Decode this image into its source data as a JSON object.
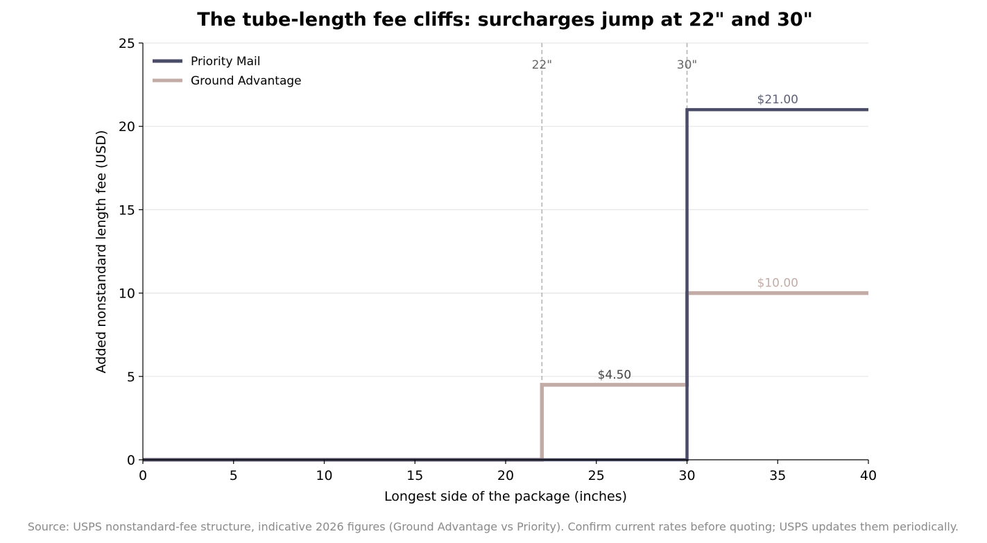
{
  "chart_data": {
    "type": "line",
    "title": "The tube-length fee cliffs: surcharges jump at 22\" and 30\"",
    "xlabel": "Longest side of the package (inches)",
    "ylabel": "Added nonstandard length fee (USD)",
    "xlim": [
      0,
      40
    ],
    "ylim": [
      0,
      25
    ],
    "x_ticks": [
      0,
      5,
      10,
      15,
      20,
      25,
      30,
      35,
      40
    ],
    "y_ticks": [
      0,
      5,
      10,
      15,
      20,
      25
    ],
    "x_tick_labels": [
      "0",
      "5",
      "10",
      "15",
      "20",
      "25",
      "30",
      "35",
      "40"
    ],
    "y_tick_labels": [
      "0",
      "5",
      "10",
      "15",
      "20",
      "25"
    ],
    "grid": "horizontal",
    "legend_position": "top-left",
    "series": [
      {
        "name": "Priority Mail",
        "color": "#4a4c68",
        "step_points": [
          [
            0,
            0
          ],
          [
            22,
            0
          ],
          [
            30,
            0
          ],
          [
            30,
            21
          ],
          [
            40,
            21
          ]
        ]
      },
      {
        "name": "Ground Advantage",
        "color": "#c4aca6",
        "step_points": [
          [
            0,
            0
          ],
          [
            22,
            0
          ],
          [
            22,
            4.5
          ],
          [
            30,
            4.5
          ],
          [
            30,
            10
          ],
          [
            40,
            10
          ]
        ]
      }
    ],
    "thresholds": [
      {
        "x": 22,
        "label": "22\""
      },
      {
        "x": 30,
        "label": "30\""
      }
    ],
    "annotations": [
      {
        "text": "$21.00",
        "x": 35,
        "y": 21,
        "color": "#5e6078"
      },
      {
        "text": "$10.00",
        "x": 35,
        "y": 10,
        "color": "#c4aca6"
      },
      {
        "text": "$4.50",
        "x": 26,
        "y": 4.5,
        "color": "#444444"
      }
    ],
    "source_note": "Source: USPS nonstandard-fee structure, indicative 2026 figures (Ground Advantage vs Priority). Confirm current rates before quoting; USPS updates them periodically."
  }
}
